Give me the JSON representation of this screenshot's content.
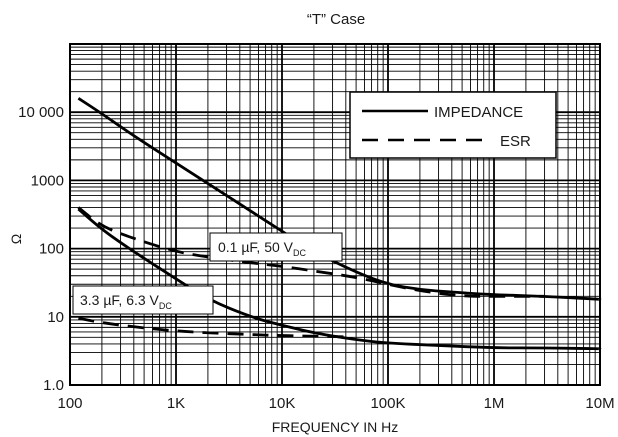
{
  "chart_data": {
    "type": "line",
    "title": "“T” Case",
    "xlabel": "FREQUENCY IN Hz",
    "ylabel": "Ω",
    "x_scale": "log",
    "y_scale": "log",
    "xlim": [
      100,
      10000000
    ],
    "ylim": [
      1,
      100000
    ],
    "x_ticks": [
      {
        "value": 100,
        "label": "100"
      },
      {
        "value": 1000,
        "label": "1K"
      },
      {
        "value": 10000,
        "label": "10K"
      },
      {
        "value": 100000,
        "label": "100K"
      },
      {
        "value": 1000000,
        "label": "1M"
      },
      {
        "value": 10000000,
        "label": "10M"
      }
    ],
    "y_ticks": [
      {
        "value": 1,
        "label": "1.0"
      },
      {
        "value": 10,
        "label": "10"
      },
      {
        "value": 100,
        "label": "100"
      },
      {
        "value": 1000,
        "label": "1000"
      },
      {
        "value": 10000,
        "label": "10 000"
      }
    ],
    "grid": true,
    "legend": {
      "position": "top-right",
      "entries": [
        {
          "label": "IMPEDANCE",
          "style": "solid"
        },
        {
          "label": "ESR",
          "style": "dashed"
        }
      ]
    },
    "annotations": [
      {
        "text": "0.1 µF, 50 V",
        "subscript": "DC"
      },
      {
        "text": "3.3 µF, 6.3 V",
        "subscript": "DC"
      }
    ],
    "series": [
      {
        "style": "solid",
        "x": [
          120,
          200,
          400,
          1000,
          2000,
          5000,
          10000,
          20000,
          50000,
          100000,
          200000,
          400000,
          1000000,
          3000000,
          10000000
        ],
        "y": [
          16000,
          9500,
          4500,
          1800,
          900,
          360,
          180,
          90,
          45,
          30,
          25,
          23,
          21,
          20,
          18
        ]
      },
      {
        "style": "dashed",
        "x": [
          120,
          200,
          400,
          1000,
          2000,
          5000,
          10000,
          20000,
          50000,
          100000,
          200000,
          500000,
          1000000,
          3000000
        ],
        "y": [
          400,
          210,
          140,
          90,
          75,
          62,
          55,
          47,
          38,
          30,
          24,
          20,
          20,
          20
        ]
      },
      {
        "style": "solid",
        "x": [
          120,
          200,
          400,
          1000,
          2000,
          5000,
          10000,
          20000,
          50000,
          100000,
          300000,
          1000000,
          3000000,
          10000000
        ],
        "y": [
          380,
          190,
          90,
          36,
          18,
          10,
          7.5,
          5.8,
          4.6,
          4.1,
          3.8,
          3.5,
          3.5,
          3.4
        ]
      },
      {
        "style": "dashed",
        "x": [
          120,
          200,
          400,
          1000,
          2000,
          5000,
          10000,
          20000,
          40000
        ],
        "y": [
          9.5,
          8.2,
          7.1,
          6.2,
          5.8,
          5.5,
          5.3,
          5.2,
          5.1
        ]
      }
    ]
  }
}
